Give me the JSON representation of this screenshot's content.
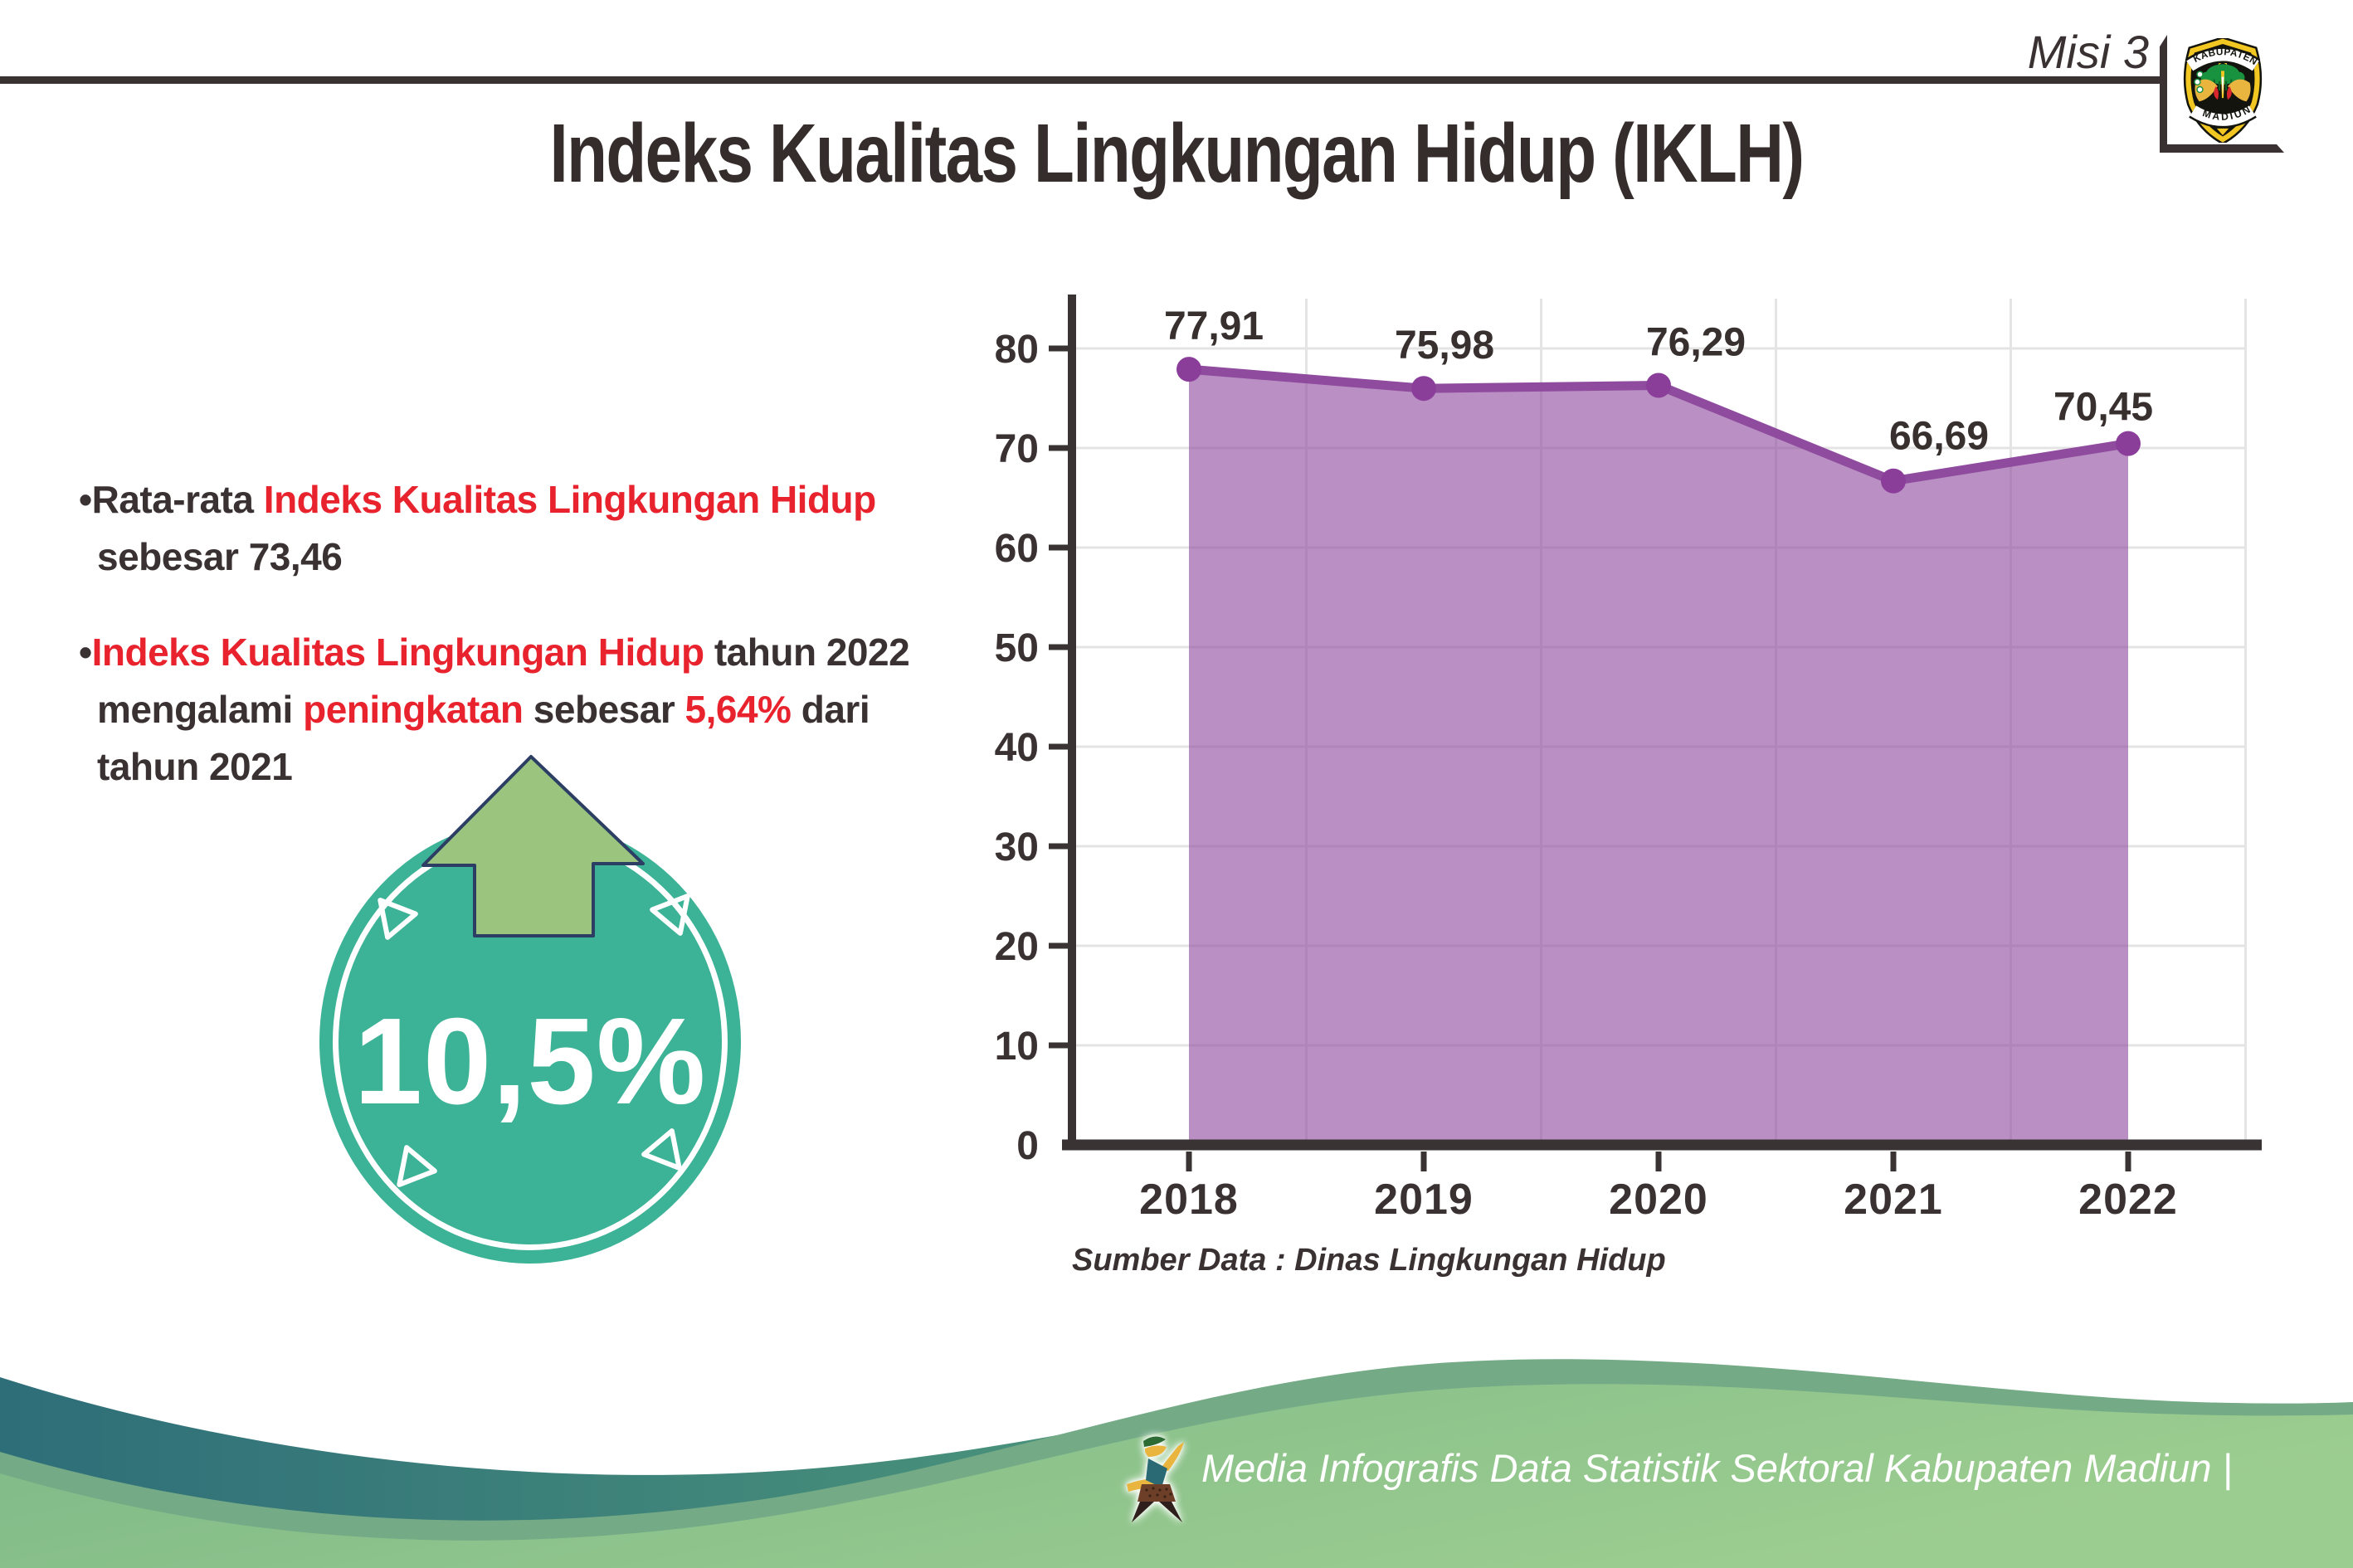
{
  "header": {
    "misi_label": "Misi 3",
    "logo": {
      "top_banner": "KABUPATEN",
      "bottom_banner": "MADIUN"
    }
  },
  "title": "Indeks Kualitas Lingkungan Hidup (IKLH)",
  "bullets": [
    {
      "lines": [
        [
          {
            "t": "•Rata-rata ",
            "c": "dark"
          },
          {
            "t": "Indeks Kualitas Lingkungan Hidup",
            "c": "red"
          }
        ],
        [
          {
            "t": "sebesar 73,46",
            "c": "dark"
          }
        ]
      ]
    },
    {
      "lines": [
        [
          {
            "t": "•",
            "c": "dark"
          },
          {
            "t": "Indeks Kualitas Lingkungan Hidup",
            "c": "red"
          },
          {
            "t": " tahun 2022",
            "c": "dark"
          }
        ],
        [
          {
            "t": "mengalami ",
            "c": "dark"
          },
          {
            "t": "peningkatan",
            "c": "red"
          },
          {
            "t": " sebesar ",
            "c": "dark"
          },
          {
            "t": "5,64%",
            "c": "red"
          },
          {
            "t": " dari",
            "c": "dark"
          }
        ],
        [
          {
            "t": "tahun 2021",
            "c": "dark"
          }
        ]
      ]
    }
  ],
  "badge": {
    "value": "10,5%"
  },
  "chart_data": {
    "type": "area",
    "categories": [
      "2018",
      "2019",
      "2020",
      "2021",
      "2022"
    ],
    "values": [
      77.91,
      75.98,
      76.29,
      66.69,
      70.45
    ],
    "value_labels": [
      "77,91",
      "75,98",
      "76,29",
      "66,69",
      "70,45"
    ],
    "series_name": "IKLH",
    "title": "",
    "xlabel": "",
    "ylabel": "",
    "ylim": [
      0,
      85
    ],
    "yticks": [
      0,
      10,
      20,
      30,
      40,
      50,
      60,
      70,
      80
    ],
    "grid": true,
    "legend": false
  },
  "source_note": "Sumber Data : Dinas Lingkungan Hidup",
  "footer": {
    "caption": "Media Infografis Data Statistik Sektoral Kabupaten Madiun |"
  },
  "colors": {
    "accent_red": "#e8232e",
    "text_dark": "#3a3132",
    "badge_teal": "#3cb296",
    "arrow_green": "#9bc57f",
    "arrow_outline_navy": "#2c3e64",
    "chart_line_purple": "#8f4b9e",
    "chart_marker_purple": "#8a3e9a",
    "chart_fill_purple": "rgba(143,74,158,0.62)",
    "axis_dark": "#3a3334",
    "gridline_gray": "#e4e4e4",
    "footer_teal": "#2e6e79",
    "footer_sage": "#74aa86",
    "footer_light_green": "#8ec28c"
  }
}
